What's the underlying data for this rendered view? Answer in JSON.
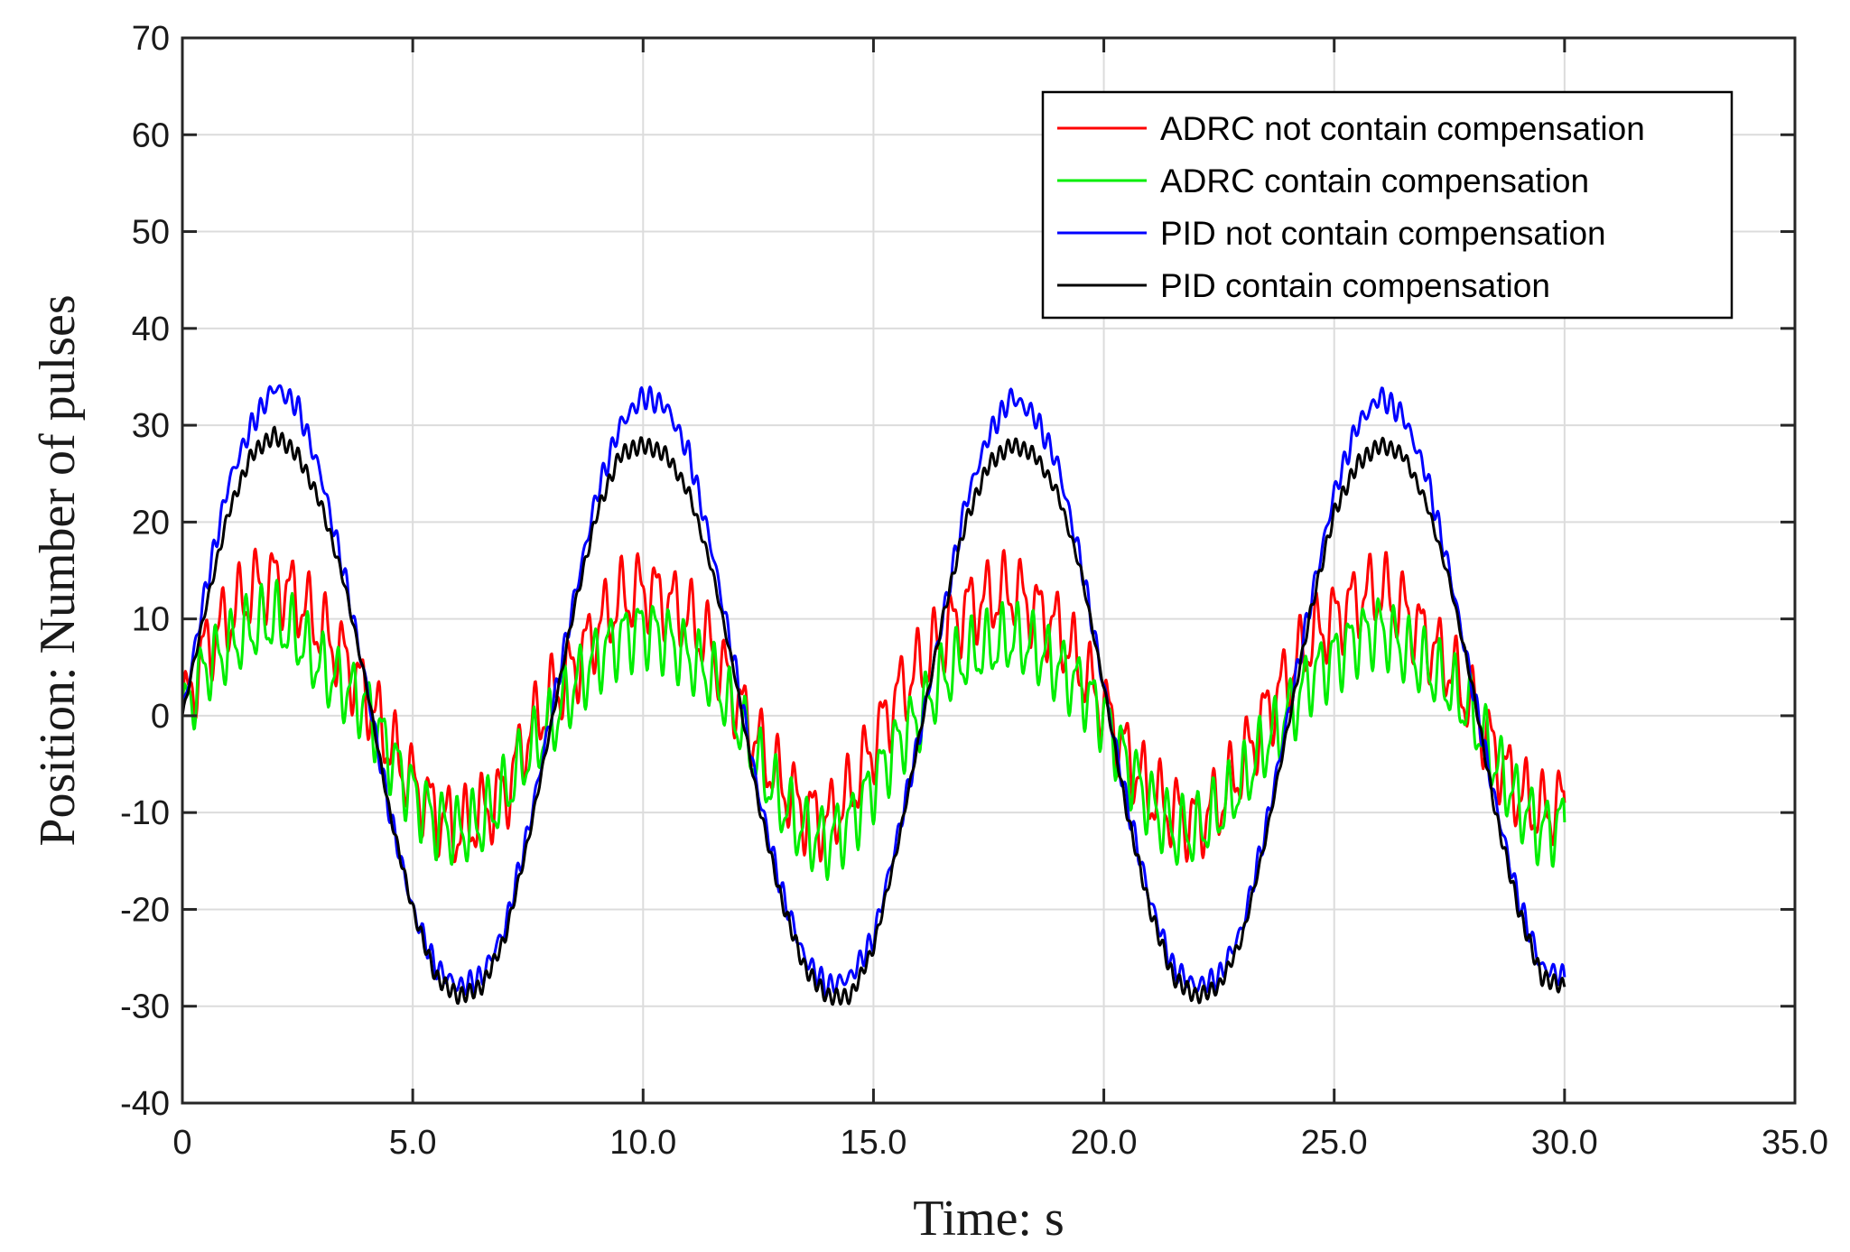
{
  "chart_data": {
    "type": "line",
    "title": "",
    "xlabel": "Time: s",
    "ylabel": "Position: Number of pulses",
    "xlim": [
      0,
      35
    ],
    "ylim": [
      -40,
      70
    ],
    "grid": true,
    "legend_position": "top-right",
    "x_ticks": [
      {
        "value": 0,
        "label": "0"
      },
      {
        "value": 5,
        "label": "5.0"
      },
      {
        "value": 10,
        "label": "10.0"
      },
      {
        "value": 15,
        "label": "15.0"
      },
      {
        "value": 20,
        "label": "20.0"
      },
      {
        "value": 25,
        "label": "25.0"
      },
      {
        "value": 30,
        "label": "30.0"
      },
      {
        "value": 35,
        "label": "35.0"
      }
    ],
    "y_ticks": [
      {
        "value": -40,
        "label": "-40"
      },
      {
        "value": -30,
        "label": "-30"
      },
      {
        "value": -20,
        "label": "-20"
      },
      {
        "value": -10,
        "label": "-10"
      },
      {
        "value": 0,
        "label": "0"
      },
      {
        "value": 10,
        "label": "10"
      },
      {
        "value": 20,
        "label": "20"
      },
      {
        "value": 30,
        "label": "30"
      },
      {
        "value": 40,
        "label": "40"
      },
      {
        "value": 50,
        "label": "50"
      },
      {
        "value": 60,
        "label": "60"
      },
      {
        "value": 70,
        "label": "70"
      }
    ],
    "series": [
      {
        "name": "ADRC not contain compensation",
        "color": "#ff0000",
        "x": [
          0,
          0.5,
          1,
          1.5,
          2,
          2.5,
          3,
          3.5,
          4,
          4.5,
          5,
          5.5,
          6,
          6.5,
          7,
          7.5,
          8,
          8.5,
          9,
          9.5,
          10,
          10.5,
          11,
          11.5,
          12,
          12.5,
          13,
          13.5,
          14,
          14.5,
          15,
          15.5,
          16,
          16.5,
          17,
          17.5,
          18,
          18.5,
          19,
          19.5,
          20,
          20.5,
          21,
          21.5,
          22,
          22.5,
          23,
          23.5,
          24,
          24.5,
          25,
          25.5,
          26,
          26.5,
          27,
          27.5,
          28,
          28.5,
          29,
          29.5,
          30
        ],
        "y": [
          0,
          7,
          10,
          13,
          14,
          12,
          9,
          6,
          2,
          -3,
          -7,
          -10,
          -12,
          -10,
          -8,
          -2,
          2,
          5,
          9,
          12,
          13,
          12,
          10,
          7,
          2,
          -3,
          -7,
          -10,
          -11,
          -8,
          -3,
          2,
          5,
          8,
          11,
          12,
          13,
          11,
          9,
          5,
          1,
          -4,
          -8,
          -10,
          -11,
          -9,
          -5,
          0,
          4,
          8,
          10,
          12,
          13,
          11,
          8,
          5,
          1,
          -4,
          -8,
          -10,
          -9
        ]
      },
      {
        "name": "ADRC  contain compensation",
        "color": "#00ee00",
        "x": [
          0,
          0.5,
          1,
          1.5,
          2,
          2.5,
          3,
          3.5,
          4,
          4.5,
          5,
          5.5,
          6,
          6.5,
          7,
          7.5,
          8,
          8.5,
          9,
          9.5,
          10,
          10.5,
          11,
          11.5,
          12,
          12.5,
          13,
          13.5,
          14,
          14.5,
          15,
          15.5,
          16,
          16.5,
          17,
          17.5,
          18,
          18.5,
          19,
          19.5,
          20,
          20.5,
          21,
          21.5,
          22,
          22.5,
          23,
          23.5,
          24,
          24.5,
          25,
          25.5,
          26,
          26.5,
          27,
          27.5,
          28,
          28.5,
          29,
          29.5,
          30
        ],
        "y": [
          0,
          5,
          7,
          9,
          10,
          8,
          5,
          3,
          1,
          -4,
          -8,
          -11,
          -12,
          -11,
          -8,
          -4,
          -1,
          3,
          6,
          8,
          9,
          8,
          6,
          4,
          0,
          -5,
          -9,
          -12,
          -13,
          -11,
          -7,
          -3,
          0,
          4,
          6,
          7,
          8,
          7,
          5,
          3,
          0,
          -5,
          -9,
          -12,
          -12,
          -10,
          -7,
          -3,
          0,
          4,
          6,
          8,
          9,
          7,
          5,
          3,
          0,
          -5,
          -9,
          -12,
          -11
        ]
      },
      {
        "name": "PID not contain compensation",
        "color": "#0000ff",
        "x": [
          0,
          0.5,
          1,
          1.5,
          2,
          2.5,
          3,
          3.5,
          4,
          4.5,
          5,
          5.5,
          6,
          6.5,
          7,
          7.5,
          8,
          8.5,
          9,
          9.5,
          10,
          10.5,
          11,
          11.5,
          12,
          12.5,
          13,
          13.5,
          14,
          14.5,
          15,
          15.5,
          16,
          16.5,
          17,
          17.5,
          18,
          18.5,
          19,
          19.5,
          20,
          20.5,
          21,
          21.5,
          22,
          22.5,
          23,
          23.5,
          24,
          24.5,
          25,
          25.5,
          26,
          26.5,
          27,
          27.5,
          28,
          28.5,
          29,
          29.5,
          30
        ],
        "y": [
          0,
          13,
          24,
          30,
          34,
          32,
          25,
          15,
          3,
          -10,
          -20,
          -26,
          -28,
          -27,
          -22,
          -12,
          0,
          12,
          23,
          30,
          33,
          32,
          27,
          17,
          5,
          -8,
          -18,
          -25,
          -28,
          -27,
          -23,
          -13,
          -2,
          10,
          22,
          29,
          33,
          31,
          26,
          16,
          3,
          -9,
          -19,
          -26,
          -28,
          -27,
          -22,
          -12,
          0,
          12,
          23,
          30,
          33,
          31,
          25,
          15,
          3,
          -9,
          -19,
          -26,
          -27
        ]
      },
      {
        "name": "PID contain compensation",
        "color": "#000000",
        "x": [
          0,
          0.5,
          1,
          1.5,
          2,
          2.5,
          3,
          3.5,
          4,
          4.5,
          5,
          5.5,
          6,
          6.5,
          7,
          7.5,
          8,
          8.5,
          9,
          9.5,
          10,
          10.5,
          11,
          11.5,
          12,
          12.5,
          13,
          13.5,
          14,
          14.5,
          15,
          15.5,
          16,
          16.5,
          17,
          17.5,
          18,
          18.5,
          19,
          19.5,
          20,
          20.5,
          21,
          21.5,
          22,
          22.5,
          23,
          23.5,
          24,
          24.5,
          25,
          25.5,
          26,
          26.5,
          27,
          27.5,
          28,
          28.5,
          29,
          29.5,
          30
        ],
        "y": [
          0,
          11,
          21,
          27,
          29,
          27,
          22,
          14,
          3,
          -10,
          -20,
          -27,
          -29,
          -28,
          -23,
          -13,
          -1,
          11,
          21,
          27,
          28,
          27,
          23,
          15,
          4,
          -9,
          -19,
          -26,
          -29,
          -29,
          -24,
          -14,
          -2,
          10,
          20,
          26,
          28,
          27,
          23,
          15,
          3,
          -10,
          -20,
          -27,
          -29,
          -28,
          -23,
          -13,
          -1,
          11,
          21,
          26,
          28,
          27,
          22,
          14,
          3,
          -10,
          -20,
          -27,
          -28
        ]
      }
    ]
  }
}
